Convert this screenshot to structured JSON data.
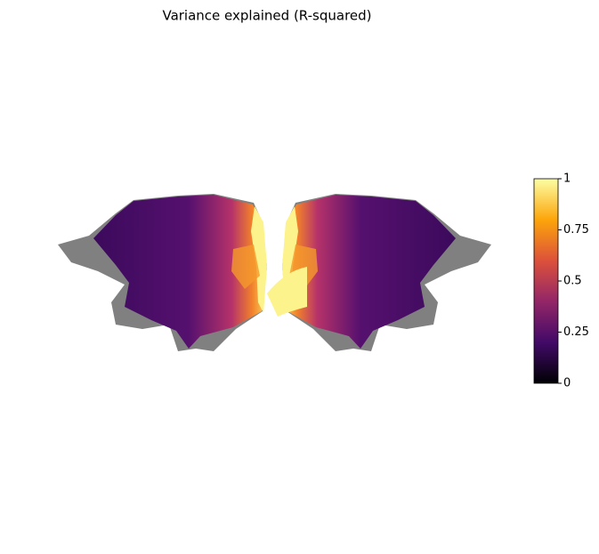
{
  "chart_data": {
    "type": "flatmap",
    "title": "Variance explained (R-squared)",
    "colorbar": {
      "lim": [
        0,
        1
      ],
      "ticks": [
        0,
        0.25,
        0.5,
        0.75,
        1
      ],
      "colormap": [
        "#000004",
        "#420a68",
        "#932667",
        "#dd513a",
        "#fca50a",
        "#fcffa4"
      ]
    }
  }
}
